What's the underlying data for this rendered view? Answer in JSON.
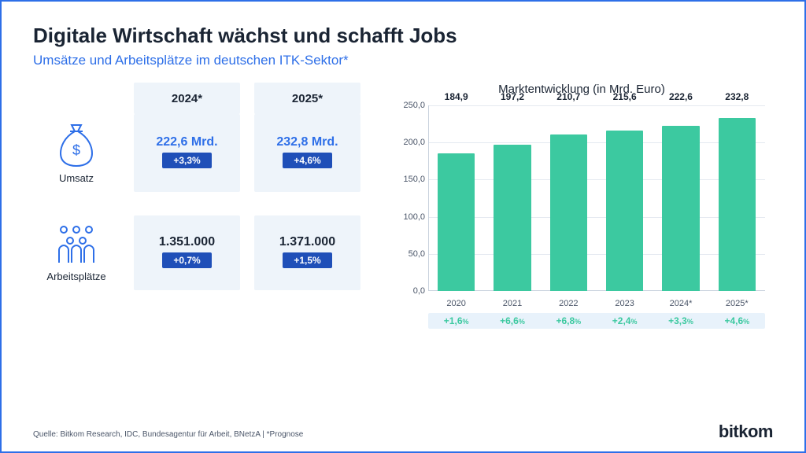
{
  "title": "Digitale Wirtschaft wächst und schafft Jobs",
  "subtitle": "Umsätze und Arbeitsplätze im deutschen ITK-Sektor*",
  "colors": {
    "title": "#1a2433",
    "accent_blue": "#2e6fe8",
    "badge_bg": "#1f4fb8",
    "col_bg": "#eef4fa",
    "bar": "#3cc9a0",
    "growth_text": "#3cc9a0",
    "growth_bg": "#e8f2fb",
    "axis": "#c9d2de",
    "grid": "#e4e9f0"
  },
  "summary": {
    "col_headers": [
      "2024*",
      "2025*"
    ],
    "rows": [
      {
        "icon": "money-bag",
        "label": "Umsatz",
        "cells": [
          {
            "value": "222,6 Mrd.",
            "badge": "+3,3%"
          },
          {
            "value": "232,8 Mrd.",
            "badge": "+4,6%"
          }
        ]
      },
      {
        "icon": "people",
        "label": "Arbeitsplätze",
        "cells": [
          {
            "value": "1.351.000",
            "badge": "+0,7%"
          },
          {
            "value": "1.371.000",
            "badge": "+1,5%"
          }
        ]
      }
    ]
  },
  "chart": {
    "title": "Marktentwicklung (in Mrd. Euro)",
    "type": "bar",
    "ylim": [
      0,
      250
    ],
    "ytick_step": 50,
    "ytick_labels": [
      "0,0",
      "50,0",
      "100,0",
      "150,0",
      "200,0",
      "250,0"
    ],
    "bar_color": "#3cc9a0",
    "bars": [
      {
        "year": "2020",
        "value": 184.9,
        "label": "184,9",
        "growth": "+1,6"
      },
      {
        "year": "2021",
        "value": 197.2,
        "label": "197,2",
        "growth": "+6,6"
      },
      {
        "year": "2022",
        "value": 210.7,
        "label": "210,7",
        "growth": "+6,8"
      },
      {
        "year": "2023",
        "value": 215.6,
        "label": "215,6",
        "growth": "+2,4"
      },
      {
        "year": "2024*",
        "value": 222.6,
        "label": "222,6",
        "growth": "+3,3"
      },
      {
        "year": "2025*",
        "value": 232.8,
        "label": "232,8",
        "growth": "+4,6"
      }
    ],
    "growth_suffix": "%"
  },
  "footer": "Quelle: Bitkom Research, IDC, Bundesagentur für Arbeit, BNetzA | *Prognose",
  "logo": "bitkom"
}
